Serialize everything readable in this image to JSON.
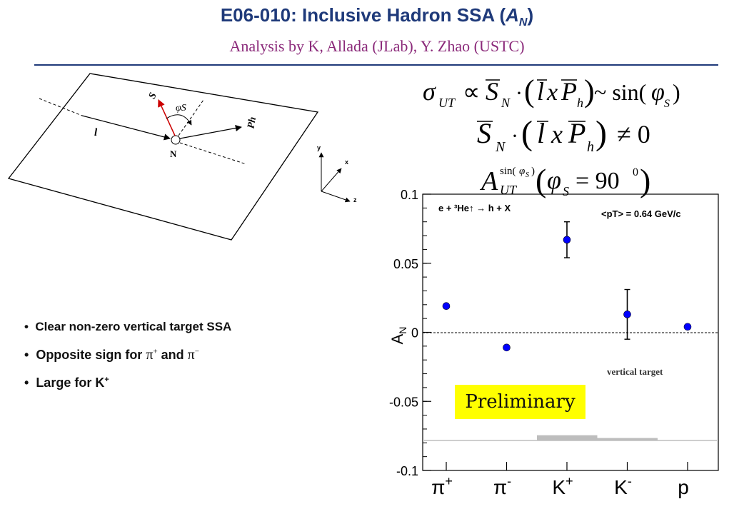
{
  "header": {
    "title_main": "E06-010: Inclusive Hadron SSA (",
    "title_var": "A",
    "title_sub": "N",
    "title_end": ")",
    "subtitle": "Analysis by K, Allada (JLab), Y. Zhao (USTC)"
  },
  "diagram": {
    "label_S": "S",
    "label_phi": "φS",
    "label_Ph": "Ph",
    "label_l": "l",
    "label_N": "N",
    "axis_y": "y",
    "axis_x": "x",
    "axis_z": "z"
  },
  "bullets": {
    "b1": "Clear non-zero vertical target SSA",
    "b2_pre": "Opposite sign for ",
    "b2_mid": " and ",
    "b3_pre": "Large for K"
  },
  "chart_data": {
    "type": "scatter",
    "title": "",
    "reaction": "e + ³He↑ → h + X",
    "annotation": "<pT> = 0.64 GeV/c",
    "note": "vertical target",
    "ylabel": "AN",
    "xlabel": "",
    "ylim": [
      -0.1,
      0.1
    ],
    "yticks": [
      "0.1",
      "0.05",
      "0",
      "-0.05",
      "-0.1"
    ],
    "categories": [
      "π+",
      "π-",
      "K+",
      "K-",
      "p"
    ],
    "values": [
      0.019,
      -0.011,
      0.067,
      0.013,
      0.004
    ],
    "errors": [
      0.001,
      0.001,
      0.013,
      0.018,
      0.001
    ],
    "systematic_band": [
      0.0,
      0.0,
      0.004,
      0.002,
      0.0
    ],
    "grid": false,
    "color": "#0000ff"
  },
  "preliminary": "Preliminary"
}
